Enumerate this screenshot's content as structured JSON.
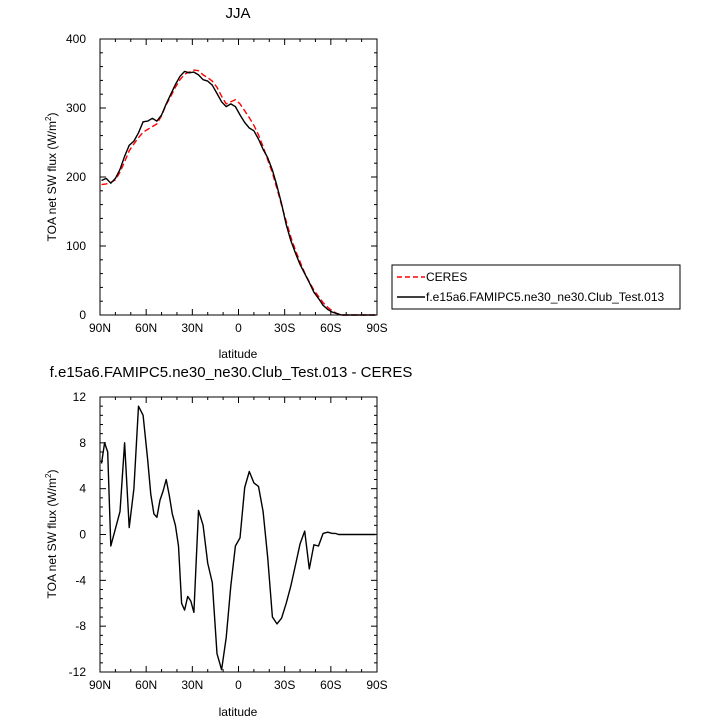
{
  "chart_data": [
    {
      "type": "line",
      "title": "JJA",
      "xlabel": "latitude",
      "ylabel": "TOA net SW flux (W/m",
      "ylabel_sup": "2",
      "ylabel_close": ")",
      "xlim": [
        90,
        -90
      ],
      "ylim": [
        0,
        400
      ],
      "x_ticks": [
        {
          "value": 90,
          "label": "90N"
        },
        {
          "value": 60,
          "label": "60N"
        },
        {
          "value": 30,
          "label": "30N"
        },
        {
          "value": 0,
          "label": "0"
        },
        {
          "value": -30,
          "label": "30S"
        },
        {
          "value": -60,
          "label": "60S"
        },
        {
          "value": -90,
          "label": "90S"
        }
      ],
      "y_ticks": [
        0,
        100,
        200,
        300,
        400
      ],
      "legend": "right",
      "series": [
        {
          "name": "CERES",
          "color": "#ff0000",
          "dash": true,
          "x": [
            89,
            86,
            83,
            80,
            77,
            74,
            71,
            68,
            65,
            62,
            59,
            56,
            53,
            50,
            47,
            44,
            41,
            38,
            35,
            32,
            29,
            26,
            23,
            20,
            17,
            14,
            11,
            8,
            5,
            2,
            -1,
            -4,
            -7,
            -10,
            -13,
            -16,
            -19,
            -22,
            -25,
            -28,
            -31,
            -34,
            -37,
            -40,
            -43,
            -46,
            -49,
            -52,
            -55,
            -58,
            -61,
            -64,
            -67,
            -70,
            -73,
            -76,
            -79,
            -82,
            -85,
            -89
          ],
          "y": [
            189,
            190,
            192,
            196,
            207,
            222,
            238,
            248,
            257,
            265,
            269,
            273,
            277,
            289,
            305,
            317,
            330,
            341,
            349,
            352,
            355,
            354,
            348,
            344,
            339,
            330,
            317,
            306,
            309,
            312,
            306,
            296,
            286,
            275,
            261,
            244,
            225,
            206,
            183,
            159,
            136,
            113,
            94,
            77,
            61,
            48,
            36,
            27,
            18,
            11,
            6,
            2,
            0,
            0,
            0,
            0,
            0,
            0,
            0,
            0
          ]
        },
        {
          "name": "f.e15a6.FAMIPC5.ne30_ne30.Club_Test.013",
          "color": "#000000",
          "dash": false,
          "x": [
            89,
            86,
            83,
            80,
            77,
            74,
            71,
            68,
            65,
            62,
            59,
            56,
            53,
            50,
            47,
            44,
            41,
            38,
            35,
            32,
            29,
            26,
            23,
            20,
            17,
            14,
            11,
            8,
            5,
            2,
            -1,
            -4,
            -7,
            -10,
            -13,
            -16,
            -19,
            -22,
            -25,
            -28,
            -31,
            -34,
            -37,
            -40,
            -43,
            -46,
            -49,
            -52,
            -55,
            -58,
            -61,
            -64,
            -67,
            -70,
            -73,
            -76,
            -79,
            -82,
            -85,
            -89
          ],
          "y": [
            195,
            198,
            191,
            198,
            211,
            230,
            246,
            252,
            264,
            280,
            281,
            285,
            281,
            290,
            306,
            320,
            334,
            346,
            353,
            351,
            352,
            348,
            341,
            339,
            333,
            321,
            309,
            302,
            306,
            302,
            290,
            279,
            271,
            267,
            255,
            240,
            228,
            210,
            187,
            161,
            131,
            108,
            90,
            73,
            60,
            47,
            33,
            24,
            14,
            8,
            4,
            2,
            0,
            0,
            0,
            0,
            0,
            0,
            0,
            0
          ]
        }
      ]
    },
    {
      "type": "line",
      "title": "f.e15a6.FAMIPC5.ne30_ne30.Club_Test.013 - CERES",
      "xlabel": "latitude",
      "ylabel": "TOA net SW flux (W/m",
      "ylabel_sup": "2",
      "ylabel_close": ")",
      "xlim": [
        90,
        -90
      ],
      "ylim": [
        -12,
        12
      ],
      "x_ticks": [
        {
          "value": 90,
          "label": "90N"
        },
        {
          "value": 60,
          "label": "60N"
        },
        {
          "value": 30,
          "label": "30N"
        },
        {
          "value": 0,
          "label": "0"
        },
        {
          "value": -30,
          "label": "30S"
        },
        {
          "value": -60,
          "label": "60S"
        },
        {
          "value": -90,
          "label": "90S"
        }
      ],
      "y_ticks": [
        -12,
        -8,
        -4,
        0,
        4,
        8,
        12
      ],
      "series": [
        {
          "color": "#000000",
          "dash": false,
          "x": [
            89,
            87,
            85,
            83,
            80,
            77,
            74,
            71,
            68,
            65,
            62,
            59,
            57,
            55,
            53,
            51,
            49,
            47,
            45,
            43,
            41,
            39,
            37,
            35,
            33,
            31,
            29,
            26,
            23,
            20,
            17,
            14,
            11,
            8,
            5,
            2,
            -1,
            -4,
            -7,
            -10,
            -13,
            -16,
            -19,
            -22,
            -25,
            -28,
            -31,
            -34,
            -37,
            -40,
            -43,
            -46,
            -49,
            -52,
            -55,
            -58,
            -61,
            -63,
            -65,
            -67,
            -69,
            -71,
            -73,
            -76,
            -79,
            -82,
            -85,
            -89
          ],
          "y": [
            6.2,
            8.0,
            7.2,
            -1.0,
            0.5,
            2.0,
            8.0,
            0.6,
            4.0,
            11.2,
            10.4,
            6.5,
            3.5,
            1.8,
            1.5,
            3.0,
            3.8,
            4.8,
            3.4,
            1.8,
            0.8,
            -1.0,
            -6.0,
            -6.6,
            -5.4,
            -5.8,
            -6.8,
            2.1,
            0.8,
            -2.5,
            -4.2,
            -10.4,
            -11.8,
            -9.0,
            -4.5,
            -1.0,
            -0.3,
            4.1,
            5.5,
            4.5,
            4.2,
            2.0,
            -2.0,
            -7.2,
            -7.8,
            -7.3,
            -6.0,
            -4.5,
            -2.7,
            -0.8,
            0.3,
            -3.0,
            -0.9,
            -1.0,
            0.1,
            0.2,
            0.1,
            0.1,
            0.0,
            0.0,
            0.0,
            0.0,
            0.0,
            0.0,
            0.0,
            0.0,
            0.0,
            0.0
          ]
        }
      ]
    }
  ]
}
